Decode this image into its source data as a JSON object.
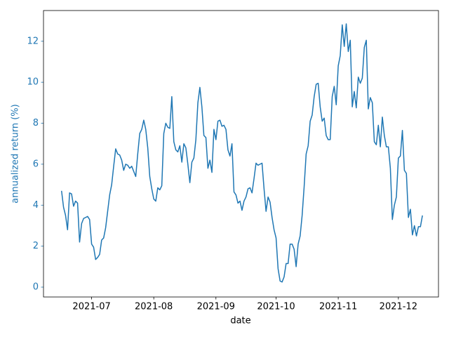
{
  "chart_data": {
    "type": "line",
    "xlabel": "date",
    "ylabel": "annualized return (%)",
    "color": "#1f77b4",
    "label_color": "#1f77b4",
    "x": [
      167,
      168,
      169,
      170,
      171,
      172,
      173,
      174,
      175,
      176,
      177,
      178,
      179,
      180,
      181,
      182,
      183,
      184,
      185,
      186,
      187,
      188,
      189,
      190,
      191,
      192,
      193,
      194,
      195,
      196,
      197,
      198,
      199,
      200,
      201,
      202,
      203,
      204,
      205,
      206,
      207,
      208,
      209,
      210,
      211,
      212,
      213,
      214,
      215,
      216,
      217,
      218,
      219,
      220,
      221,
      222,
      223,
      224,
      225,
      226,
      227,
      228,
      229,
      230,
      231,
      232,
      233,
      234,
      235,
      236,
      237,
      238,
      239,
      240,
      241,
      242,
      243,
      244,
      245,
      246,
      247,
      248,
      249,
      250,
      251,
      252,
      253,
      254,
      255,
      256,
      257,
      258,
      259,
      260,
      261,
      262,
      263,
      264,
      265,
      266,
      267,
      268,
      269,
      270,
      271,
      272,
      273,
      274,
      275,
      276,
      277,
      278,
      279,
      280,
      281,
      282,
      283,
      284,
      285,
      286,
      287,
      288,
      289,
      290,
      291,
      292,
      293,
      294,
      295,
      296,
      297,
      298,
      299,
      300,
      301,
      302,
      303,
      304,
      305,
      306,
      307,
      308,
      309,
      310,
      311,
      312,
      313,
      314,
      315,
      316,
      317,
      318,
      319,
      320,
      321,
      322,
      323,
      324,
      325,
      326,
      327,
      328,
      329,
      330,
      331,
      332,
      333,
      334,
      335,
      336,
      337,
      338,
      339,
      340,
      341,
      342,
      343,
      344,
      345,
      346,
      347
    ],
    "values": [
      4.7,
      3.9,
      3.5,
      2.8,
      4.6,
      4.55,
      3.95,
      4.2,
      4.1,
      2.2,
      3.1,
      3.35,
      3.4,
      3.45,
      3.3,
      2.1,
      1.95,
      1.35,
      1.45,
      1.6,
      2.3,
      2.4,
      2.9,
      3.7,
      4.5,
      5.0,
      5.9,
      6.75,
      6.5,
      6.45,
      6.2,
      5.7,
      6.0,
      5.95,
      5.8,
      5.9,
      5.65,
      5.4,
      6.5,
      7.5,
      7.7,
      8.15,
      7.7,
      6.8,
      5.4,
      4.8,
      4.3,
      4.2,
      4.85,
      4.75,
      4.95,
      7.5,
      8.0,
      7.8,
      7.75,
      9.3,
      7.1,
      6.7,
      6.6,
      6.9,
      6.1,
      7.0,
      6.8,
      6.0,
      5.1,
      6.1,
      6.3,
      7.2,
      9.0,
      9.75,
      8.8,
      7.4,
      7.3,
      5.8,
      6.2,
      5.6,
      7.7,
      7.2,
      8.1,
      8.15,
      7.85,
      7.9,
      7.7,
      6.7,
      6.4,
      7.0,
      4.65,
      4.5,
      4.1,
      4.2,
      3.75,
      4.2,
      4.4,
      4.8,
      4.85,
      4.6,
      5.3,
      6.05,
      5.95,
      6.0,
      6.05,
      4.8,
      3.7,
      4.4,
      4.15,
      3.4,
      2.8,
      2.4,
      0.9,
      0.3,
      0.25,
      0.5,
      1.15,
      1.15,
      2.1,
      2.1,
      1.85,
      1.0,
      2.1,
      2.5,
      3.5,
      4.9,
      6.5,
      6.9,
      8.1,
      8.4,
      9.3,
      9.9,
      9.95,
      8.8,
      8.1,
      8.25,
      7.4,
      7.2,
      7.2,
      9.3,
      9.8,
      8.9,
      10.8,
      11.3,
      12.8,
      11.75,
      12.85,
      11.5,
      12.05,
      8.8,
      9.55,
      8.75,
      10.25,
      9.95,
      10.2,
      11.7,
      12.05,
      8.7,
      9.25,
      9.0,
      7.1,
      6.95,
      7.9,
      6.85,
      8.3,
      7.4,
      6.85,
      6.85,
      5.8,
      3.3,
      4.0,
      4.4,
      6.3,
      6.4,
      7.65,
      5.7,
      5.55,
      3.4,
      3.8,
      2.55,
      3.0,
      2.5,
      2.95,
      2.95,
      3.5
    ],
    "xlim": [
      158,
      355
    ],
    "xticks": [
      {
        "value": 182,
        "label": "2021-07"
      },
      {
        "value": 213,
        "label": "2021-08"
      },
      {
        "value": 244,
        "label": "2021-09"
      },
      {
        "value": 274,
        "label": "2021-10"
      },
      {
        "value": 305,
        "label": "2021-11"
      },
      {
        "value": 335,
        "label": "2021-12"
      }
    ],
    "ylim": [
      -0.48,
      13.5
    ],
    "yticks": [
      0,
      2,
      4,
      6,
      8,
      10,
      12
    ]
  }
}
